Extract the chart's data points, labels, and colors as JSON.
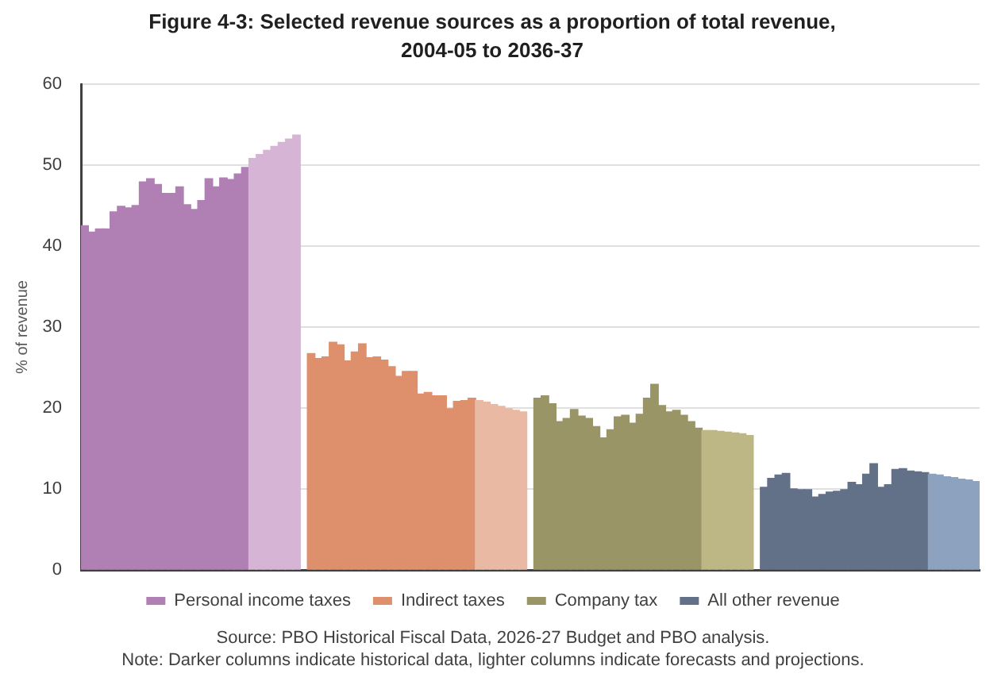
{
  "chart_data": {
    "type": "bar",
    "title": "Figure 4-3: Selected revenue sources as a proportion of total revenue, 2004-05 to 2036-37",
    "ylabel": "% of revenue",
    "categories": [
      null,
      null,
      null,
      null,
      null,
      null,
      null,
      null,
      null,
      null,
      null,
      null,
      null,
      null,
      null,
      null,
      null,
      null,
      null,
      null,
      null,
      null,
      null,
      null,
      null,
      null,
      null,
      null,
      null,
      null,
      null,
      null,
      null,
      null,
      null,
      null,
      null,
      null,
      null,
      null,
      null,
      null,
      null,
      null,
      null,
      null,
      null,
      null,
      null,
      null,
      null,
      null,
      null,
      null,
      null,
      null,
      null,
      null,
      null,
      null,
      null,
      null,
      null,
      null,
      null,
      null,
      null,
      null,
      null,
      null,
      null,
      null,
      null,
      null,
      null,
      null,
      null,
      null,
      null,
      null,
      null,
      null,
      null,
      null,
      null,
      null,
      null,
      null,
      null,
      null,
      null,
      null,
      null,
      null,
      null,
      null,
      null,
      null,
      null,
      null,
      null,
      null,
      null,
      null,
      null,
      null,
      null,
      null,
      null,
      null,
      null,
      null,
      null,
      null,
      null,
      null,
      null,
      null,
      null,
      null,
      null,
      null,
      null
    ],
    "series": [
      {
        "name": "Personal income taxes",
        "color": "#b07fb4",
        "values": [
          42.5,
          41.7,
          42.1,
          42.1,
          44.2,
          44.9,
          44.7,
          45,
          47.9,
          48.3,
          47.6,
          46.5,
          46.5,
          47.3,
          45.1,
          44.5,
          45.6,
          48.3,
          47.3,
          48.4,
          48.2,
          48.9,
          49.7,
          50.8,
          51.3,
          51.8,
          52.3,
          52.8,
          53.2,
          53.7,
          null,
          null,
          null,
          null,
          null,
          null,
          null,
          null,
          null,
          null,
          null,
          null,
          null,
          null,
          null,
          null,
          null,
          null,
          null,
          null,
          null,
          null,
          null,
          null,
          null,
          null,
          null,
          null,
          null,
          null,
          null,
          null,
          null,
          null,
          null,
          null,
          null,
          null,
          null,
          null,
          null,
          null,
          null,
          null,
          null,
          null,
          null,
          null,
          null,
          null,
          null,
          null,
          null,
          null,
          null,
          null,
          null,
          null,
          null,
          null,
          null,
          null,
          null,
          null,
          null,
          null,
          null,
          null,
          null,
          null,
          null,
          null,
          null,
          null,
          null,
          null,
          null,
          null,
          null,
          null,
          null,
          null,
          null,
          null,
          null,
          null,
          null,
          null,
          null,
          null,
          null,
          null,
          null
        ],
        "colors": [
          "#b07fb4",
          "#b07fb4",
          "#b07fb4",
          "#b07fb4",
          "#b07fb4",
          "#b07fb4",
          "#b07fb4",
          "#b07fb4",
          "#b07fb4",
          "#b07fb4",
          "#b07fb4",
          "#b07fb4",
          "#b07fb4",
          "#b07fb4",
          "#b07fb4",
          "#b07fb4",
          "#b07fb4",
          "#b07fb4",
          "#b07fb4",
          "#b07fb4",
          "#b07fb4",
          "#b07fb4",
          "#b07fb4",
          "#d5b4d5",
          "#d5b4d5",
          "#d5b4d5",
          "#d5b4d5",
          "#d5b4d5",
          "#d5b4d5",
          "#d5b4d5",
          null,
          null,
          null,
          null,
          null,
          null,
          null,
          null,
          null,
          null,
          null,
          null,
          null,
          null,
          null,
          null,
          null,
          null,
          null,
          null,
          null,
          null,
          null,
          null,
          null,
          null,
          null,
          null,
          null,
          null,
          null,
          null,
          null,
          null,
          null,
          null,
          null,
          null,
          null,
          null,
          null,
          null,
          null,
          null,
          null,
          null,
          null,
          null,
          null,
          null,
          null,
          null,
          null,
          null,
          null,
          null,
          null,
          null,
          null,
          null,
          null,
          null,
          null,
          null,
          null,
          null,
          null,
          null,
          null,
          null,
          null,
          null,
          null,
          null,
          null,
          null,
          null,
          null,
          null,
          null,
          null,
          null,
          null,
          null,
          null,
          null,
          null,
          null,
          null,
          null,
          null,
          null,
          null
        ]
      },
      {
        "name": "Indirect taxes",
        "color": "#de8f6c",
        "values": [
          null,
          null,
          null,
          null,
          null,
          null,
          null,
          null,
          null,
          null,
          null,
          null,
          null,
          null,
          null,
          null,
          null,
          null,
          null,
          null,
          null,
          null,
          null,
          null,
          null,
          null,
          null,
          null,
          null,
          null,
          null,
          26.7,
          26.1,
          26.3,
          28.1,
          27.8,
          25.8,
          26.9,
          27.9,
          26.2,
          26.3,
          25.9,
          25.1,
          23.9,
          24.5,
          24.5,
          21.7,
          21.9,
          21.5,
          21.5,
          19.9,
          20.8,
          20.9,
          21.2,
          20.9,
          20.7,
          20.4,
          20.2,
          19.9,
          19.7,
          19.5,
          null,
          null,
          null,
          null,
          null,
          null,
          null,
          null,
          null,
          null,
          null,
          null,
          null,
          null,
          null,
          null,
          null,
          null,
          null,
          null,
          null,
          null,
          null,
          null,
          null,
          null,
          null,
          null,
          null,
          null,
          null,
          null,
          null,
          null,
          null,
          null,
          null,
          null,
          null,
          null,
          null,
          null,
          null,
          null,
          null,
          null,
          null,
          null,
          null,
          null,
          null,
          null,
          null,
          null,
          null,
          null,
          null,
          null,
          null,
          null,
          null,
          null
        ],
        "colors": [
          null,
          null,
          null,
          null,
          null,
          null,
          null,
          null,
          null,
          null,
          null,
          null,
          null,
          null,
          null,
          null,
          null,
          null,
          null,
          null,
          null,
          null,
          null,
          null,
          null,
          null,
          null,
          null,
          null,
          null,
          null,
          "#de8f6c",
          "#de8f6c",
          "#de8f6c",
          "#de8f6c",
          "#de8f6c",
          "#de8f6c",
          "#de8f6c",
          "#de8f6c",
          "#de8f6c",
          "#de8f6c",
          "#de8f6c",
          "#de8f6c",
          "#de8f6c",
          "#de8f6c",
          "#de8f6c",
          "#de8f6c",
          "#de8f6c",
          "#de8f6c",
          "#de8f6c",
          "#de8f6c",
          "#de8f6c",
          "#de8f6c",
          "#de8f6c",
          "#e9b9a4",
          "#e9b9a4",
          "#e9b9a4",
          "#e9b9a4",
          "#e9b9a4",
          "#e9b9a4",
          "#e9b9a4",
          null,
          null,
          null,
          null,
          null,
          null,
          null,
          null,
          null,
          null,
          null,
          null,
          null,
          null,
          null,
          null,
          null,
          null,
          null,
          null,
          null,
          null,
          null,
          null,
          null,
          null,
          null,
          null,
          null,
          null,
          null,
          null,
          null,
          null,
          null,
          null,
          null,
          null,
          null,
          null,
          null,
          null,
          null,
          null,
          null,
          null,
          null,
          null,
          null,
          null,
          null,
          null,
          null,
          null,
          null,
          null,
          null,
          null,
          null,
          null,
          null,
          null
        ]
      },
      {
        "name": "Company tax",
        "color": "#9a9566",
        "values": [
          null,
          null,
          null,
          null,
          null,
          null,
          null,
          null,
          null,
          null,
          null,
          null,
          null,
          null,
          null,
          null,
          null,
          null,
          null,
          null,
          null,
          null,
          null,
          null,
          null,
          null,
          null,
          null,
          null,
          null,
          null,
          null,
          null,
          null,
          null,
          null,
          null,
          null,
          null,
          null,
          null,
          null,
          null,
          null,
          null,
          null,
          null,
          null,
          null,
          null,
          null,
          null,
          null,
          null,
          null,
          null,
          null,
          null,
          null,
          null,
          null,
          null,
          21.2,
          21.5,
          20.5,
          18.3,
          18.7,
          19.8,
          19,
          18.7,
          17.7,
          16.3,
          17.3,
          18.9,
          19.1,
          18.1,
          19.2,
          21.2,
          22.9,
          20.3,
          19.5,
          19.7,
          19.1,
          18.3,
          17.5,
          17.2,
          17.2,
          17.1,
          17,
          16.9,
          16.8,
          16.6,
          null,
          null,
          null,
          null,
          null,
          null,
          null,
          null,
          null,
          null,
          null,
          null,
          null,
          null,
          null,
          null,
          null,
          null,
          null,
          null,
          null,
          null,
          null,
          null,
          null,
          null,
          null,
          null,
          null,
          null,
          null
        ],
        "colors": [
          null,
          null,
          null,
          null,
          null,
          null,
          null,
          null,
          null,
          null,
          null,
          null,
          null,
          null,
          null,
          null,
          null,
          null,
          null,
          null,
          null,
          null,
          null,
          null,
          null,
          null,
          null,
          null,
          null,
          null,
          null,
          null,
          null,
          null,
          null,
          null,
          null,
          null,
          null,
          null,
          null,
          null,
          null,
          null,
          null,
          null,
          null,
          null,
          null,
          null,
          null,
          null,
          null,
          null,
          null,
          null,
          null,
          null,
          null,
          null,
          null,
          null,
          "#9a9566",
          "#9a9566",
          "#9a9566",
          "#9a9566",
          "#9a9566",
          "#9a9566",
          "#9a9566",
          "#9a9566",
          "#9a9566",
          "#9a9566",
          "#9a9566",
          "#9a9566",
          "#9a9566",
          "#9a9566",
          "#9a9566",
          "#9a9566",
          "#9a9566",
          "#9a9566",
          "#9a9566",
          "#9a9566",
          "#9a9566",
          "#9a9566",
          "#9a9566",
          "#bdb685",
          "#bdb685",
          "#bdb685",
          "#bdb685",
          "#bdb685",
          "#bdb685",
          "#bdb685",
          null,
          null,
          null,
          null,
          null,
          null,
          null,
          null,
          null,
          null,
          null,
          null,
          null,
          null,
          null,
          null,
          null,
          null,
          null,
          null,
          null,
          null,
          null,
          null,
          null,
          null,
          null,
          null,
          null,
          null,
          null
        ]
      },
      {
        "name": "All other revenue",
        "color": "#637188",
        "values": [
          null,
          null,
          null,
          null,
          null,
          null,
          null,
          null,
          null,
          null,
          null,
          null,
          null,
          null,
          null,
          null,
          null,
          null,
          null,
          null,
          null,
          null,
          null,
          null,
          null,
          null,
          null,
          null,
          null,
          null,
          null,
          null,
          null,
          null,
          null,
          null,
          null,
          null,
          null,
          null,
          null,
          null,
          null,
          null,
          null,
          null,
          null,
          null,
          null,
          null,
          null,
          null,
          null,
          null,
          null,
          null,
          null,
          null,
          null,
          null,
          null,
          null,
          null,
          null,
          null,
          null,
          null,
          null,
          null,
          null,
          null,
          null,
          null,
          null,
          null,
          null,
          null,
          null,
          null,
          null,
          null,
          null,
          null,
          null,
          null,
          null,
          null,
          null,
          null,
          null,
          null,
          null,
          null,
          10.2,
          11.3,
          11.7,
          11.9,
          10,
          9.9,
          9.9,
          9,
          9.3,
          9.6,
          9.7,
          9.9,
          10.8,
          10.5,
          11.8,
          13.1,
          10.2,
          10.5,
          12.4,
          12.5,
          12.2,
          12.1,
          12,
          11.8,
          11.7,
          11.5,
          11.4,
          11.2,
          11.1,
          10.9
        ],
        "colors": [
          null,
          null,
          null,
          null,
          null,
          null,
          null,
          null,
          null,
          null,
          null,
          null,
          null,
          null,
          null,
          null,
          null,
          null,
          null,
          null,
          null,
          null,
          null,
          null,
          null,
          null,
          null,
          null,
          null,
          null,
          null,
          null,
          null,
          null,
          null,
          null,
          null,
          null,
          null,
          null,
          null,
          null,
          null,
          null,
          null,
          null,
          null,
          null,
          null,
          null,
          null,
          null,
          null,
          null,
          null,
          null,
          null,
          null,
          null,
          null,
          null,
          null,
          null,
          null,
          null,
          null,
          null,
          null,
          null,
          null,
          null,
          null,
          null,
          null,
          null,
          null,
          null,
          null,
          null,
          null,
          null,
          null,
          null,
          null,
          null,
          null,
          null,
          null,
          null,
          null,
          null,
          null,
          null,
          "#637188",
          "#637188",
          "#637188",
          "#637188",
          "#637188",
          "#637188",
          "#637188",
          "#637188",
          "#637188",
          "#637188",
          "#637188",
          "#637188",
          "#637188",
          "#637188",
          "#637188",
          "#637188",
          "#637188",
          "#637188",
          "#637188",
          "#637188",
          "#637188",
          "#637188",
          "#637188",
          "#8ca2be",
          "#8ca2be",
          "#8ca2be",
          "#8ca2be",
          "#8ca2be",
          "#8ca2be",
          "#8ca2be"
        ]
      }
    ],
    "ylim": [
      0,
      60
    ],
    "yticks": [
      0,
      10,
      20,
      30,
      40,
      50,
      60
    ],
    "grid": "y",
    "legend": "bottom",
    "tick_labels": "y",
    "annotations": [
      "Source: PBO Historical Fiscal Data, 2026-27 Budget and PBO analysis.",
      "Note: Darker columns indicate historical data, lighter columns indicate forecasts and projections."
    ]
  }
}
